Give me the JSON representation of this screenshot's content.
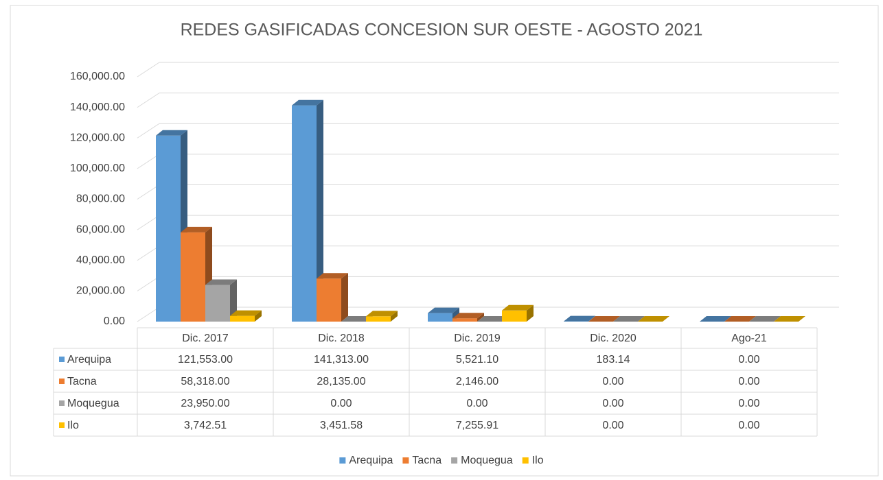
{
  "chart_data": {
    "type": "bar3d",
    "title": "REDES GASIFICADAS CONCESION SUR OESTE - AGOSTO 2021",
    "categories": [
      "Dic. 2017",
      "Dic. 2018",
      "Dic. 2019",
      "Dic. 2020",
      "Ago-21"
    ],
    "series": [
      {
        "name": "Arequipa",
        "color": "#5b9bd5",
        "values": [
          121553,
          141313,
          5521.1,
          183.14,
          0
        ],
        "value_labels": [
          "121,553.00",
          "141,313.00",
          "5,521.10",
          "183.14",
          "0.00"
        ]
      },
      {
        "name": "Tacna",
        "color": "#ed7d31",
        "values": [
          58318,
          28135,
          2146,
          0,
          0
        ],
        "value_labels": [
          "58,318.00",
          "28,135.00",
          "2,146.00",
          "0.00",
          "0.00"
        ]
      },
      {
        "name": "Moquegua",
        "color": "#a5a5a5",
        "values": [
          23950,
          0,
          0,
          0,
          0
        ],
        "value_labels": [
          "23,950.00",
          "0.00",
          "0.00",
          "0.00",
          "0.00"
        ]
      },
      {
        "name": "Ilo",
        "color": "#ffc000",
        "values": [
          3742.51,
          3451.58,
          7255.91,
          0,
          0
        ],
        "value_labels": [
          "3,742.51",
          "3,451.58",
          "7,255.91",
          "0.00",
          "0.00"
        ]
      }
    ],
    "ylim": [
      0,
      160000
    ],
    "yticks": [
      {
        "value": 0,
        "label": "0.00"
      },
      {
        "value": 20000,
        "label": "20,000.00"
      },
      {
        "value": 40000,
        "label": "40,000.00"
      },
      {
        "value": 60000,
        "label": "60,000.00"
      },
      {
        "value": 80000,
        "label": "80,000.00"
      },
      {
        "value": 100000,
        "label": "100,000.00"
      },
      {
        "value": 120000,
        "label": "120,000.00"
      },
      {
        "value": 140000,
        "label": "140,000.00"
      },
      {
        "value": 160000,
        "label": "160,000.00"
      }
    ],
    "grid": true,
    "legend": "bottom"
  }
}
